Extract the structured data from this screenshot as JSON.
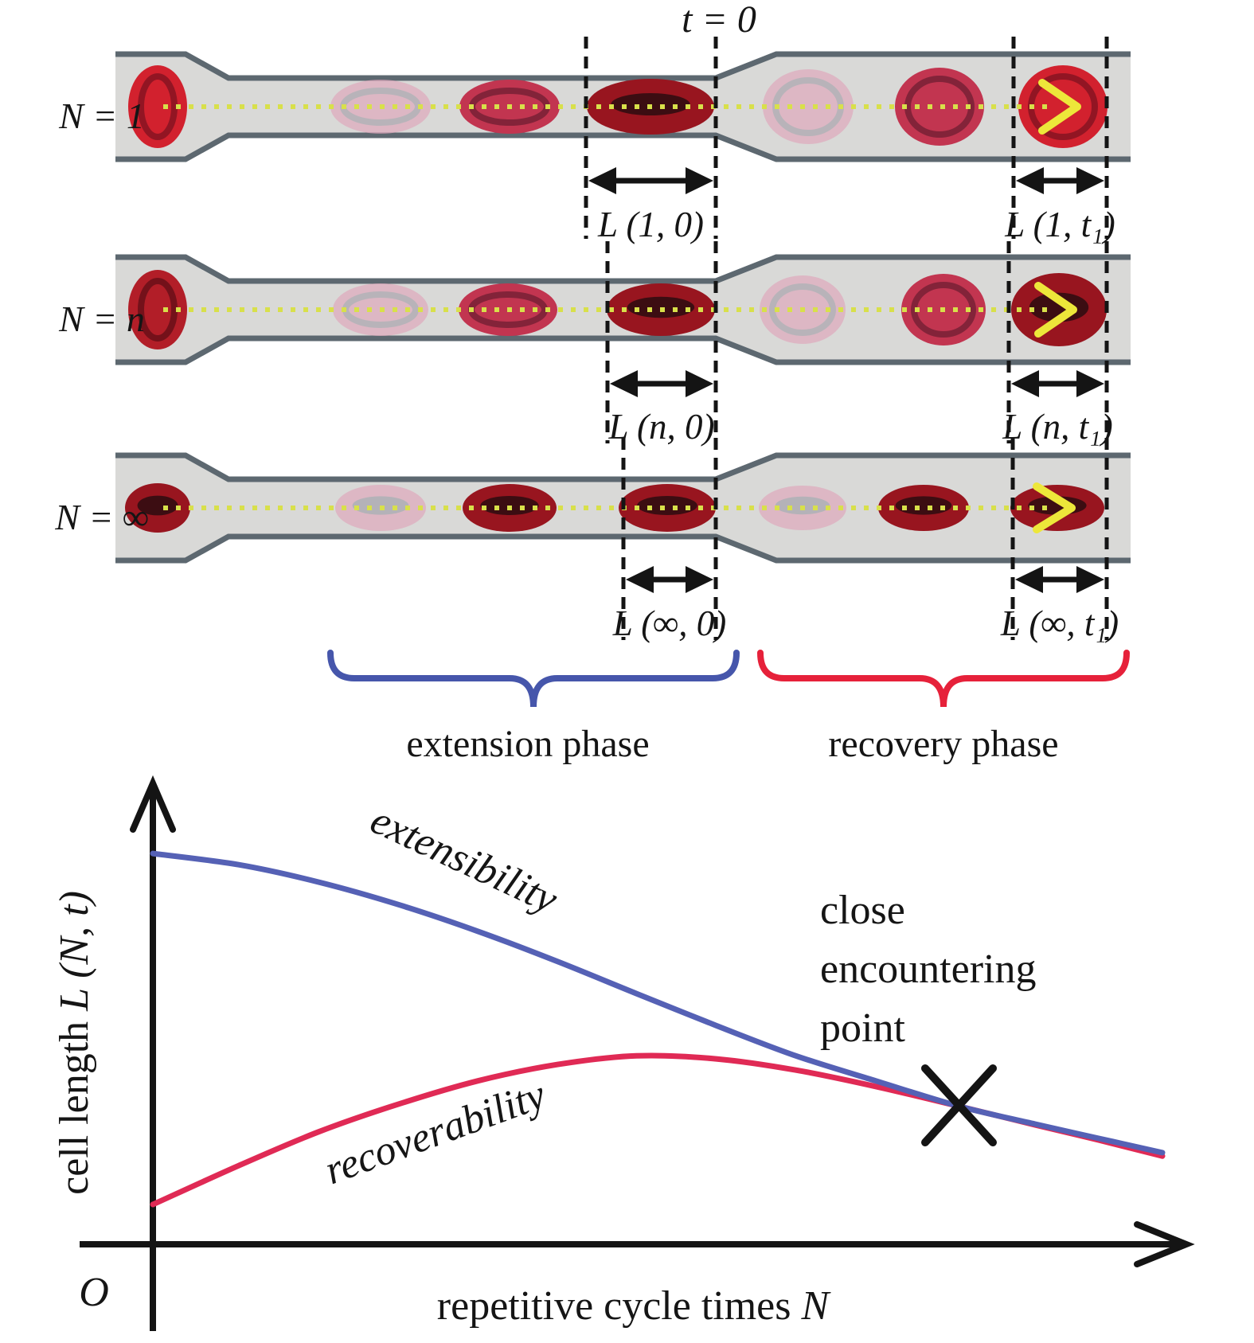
{
  "figure": {
    "time_zero_label": "t = 0",
    "rows": [
      {
        "n_label": "N = 1",
        "extension_label": "L (1, 0)",
        "recovery_label": "L (1, t₁)"
      },
      {
        "n_label": "N = n",
        "extension_label": "L (n, 0)",
        "recovery_label": "L (n, t₁)"
      },
      {
        "n_label": "N = ∞",
        "extension_label": "L (∞, 0)",
        "recovery_label": "L (∞, t₁)"
      }
    ],
    "phases": {
      "extension": {
        "label": "extension phase",
        "color": "#4656ab"
      },
      "recovery": {
        "label": "recovery phase",
        "color": "#e6213a"
      }
    },
    "colors": {
      "channel_wall": "#5d6870",
      "channel_fill": "#d9d9d7",
      "centerline_yellow": "#d8e04a",
      "cell_bright_red": "#d2212e",
      "cell_medium_red": "#c23550",
      "cell_dark_red": "#98151f",
      "cell_faded_pink": "#e0a2b8",
      "flow_marker_yellow": "#ede73a",
      "measurement_black": "#141414"
    }
  },
  "chart_data": {
    "type": "line",
    "title": "",
    "xlabel": "repetitive cycle times N",
    "ylabel": "cell length L (N, t)",
    "origin_label": "O",
    "axis_style": "schematic arrows, no numeric ticks, no grid",
    "legend": "inline rotated curve labels",
    "series": [
      {
        "name": "extensibility",
        "color": "#5561b5",
        "x": [
          0.0,
          0.085,
          0.164,
          0.243,
          0.322,
          0.401,
          0.479,
          0.558,
          0.637,
          0.716,
          0.799,
          0.874,
          0.937,
          1.0
        ],
        "y": [
          0.904,
          0.878,
          0.838,
          0.786,
          0.724,
          0.654,
          0.58,
          0.506,
          0.436,
          0.378,
          0.319,
          0.278,
          0.245,
          0.212
        ]
      },
      {
        "name": "recoverability",
        "color": "#e02a55",
        "x": [
          0.0,
          0.085,
          0.164,
          0.243,
          0.322,
          0.401,
          0.479,
          0.558,
          0.637,
          0.716,
          0.799,
          0.874,
          0.937,
          1.0
        ],
        "y": [
          0.092,
          0.182,
          0.26,
          0.324,
          0.378,
          0.416,
          0.436,
          0.429,
          0.403,
          0.365,
          0.319,
          0.276,
          0.241,
          0.204
        ]
      }
    ],
    "annotations": [
      {
        "text": "close encountering point",
        "marker": "x-cross",
        "x": 0.799,
        "y": 0.319
      }
    ]
  },
  "graph": {
    "ylabel_prefix": "cell length ",
    "ylabel_math": "L (N, t)",
    "xlabel_prefix": "repetitive cycle times ",
    "xlabel_math": "N",
    "origin": "O",
    "extensibility_label": "extensibility",
    "recoverability_label": "recoverability",
    "annotation_lines": [
      "close",
      "encountering",
      "point"
    ]
  }
}
